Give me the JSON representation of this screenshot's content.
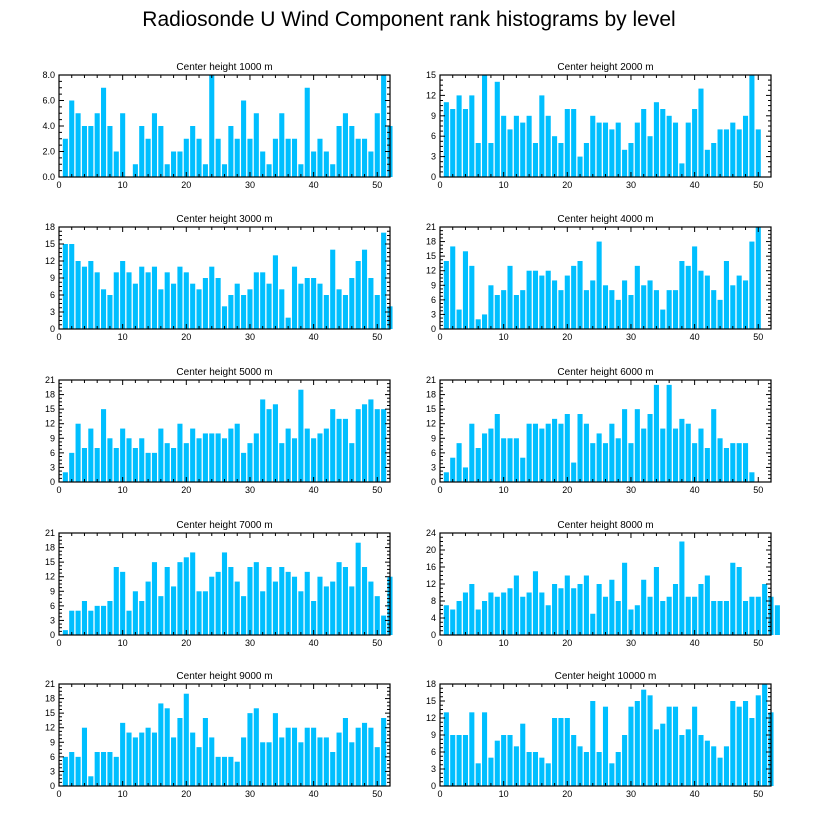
{
  "title": "Radiosonde U Wind Component rank histograms by level",
  "colors": {
    "bar": "#00bfff",
    "axis": "#000000",
    "background": "#ffffff"
  },
  "chart_data": [
    {
      "type": "bar",
      "title": "Center height 1000 m",
      "xlim": [
        0,
        52
      ],
      "ylim": [
        0,
        8
      ],
      "yticks": [
        "0.0",
        "2.0",
        "4.0",
        "6.0",
        "8.0"
      ],
      "xticks": [
        0,
        10,
        20,
        30,
        40,
        50
      ],
      "values": [
        3,
        6,
        5,
        4,
        4,
        5,
        7,
        4,
        2,
        5,
        0,
        1,
        4,
        3,
        5,
        4,
        1,
        2,
        2,
        3,
        4,
        3,
        1,
        8,
        3,
        1,
        4,
        3,
        6,
        3,
        5,
        2,
        1,
        3,
        5,
        3,
        3,
        1,
        7,
        2,
        3,
        2,
        1,
        4,
        5,
        4,
        3,
        3,
        2,
        5,
        8,
        4
      ]
    },
    {
      "type": "bar",
      "title": "Center height 2000 m",
      "xlim": [
        0,
        52
      ],
      "ylim": [
        0,
        15
      ],
      "yticks": [
        "0",
        "3",
        "6",
        "9",
        "12",
        "15"
      ],
      "xticks": [
        0,
        10,
        20,
        30,
        40,
        50
      ],
      "values": [
        11,
        10,
        12,
        10,
        12,
        5,
        15,
        5,
        14,
        9,
        7,
        9,
        8,
        9,
        5,
        12,
        9,
        6,
        5,
        10,
        10,
        3,
        5,
        9,
        8,
        8,
        7,
        8,
        4,
        5,
        8,
        10,
        6,
        11,
        10,
        9,
        8,
        2,
        8,
        10,
        13,
        4,
        5,
        7,
        7,
        8,
        7,
        9,
        15,
        7
      ]
    },
    {
      "type": "bar",
      "title": "Center height 3000 m",
      "xlim": [
        0,
        52
      ],
      "ylim": [
        0,
        18
      ],
      "yticks": [
        "0",
        "3",
        "6",
        "9",
        "12",
        "15",
        "18"
      ],
      "xticks": [
        0,
        10,
        20,
        30,
        40,
        50
      ],
      "values": [
        15,
        15,
        12,
        11,
        12,
        10,
        7,
        6,
        10,
        12,
        10,
        8,
        11,
        10,
        11,
        7,
        10,
        8,
        11,
        10,
        8,
        7,
        9,
        11,
        9,
        4,
        6,
        8,
        6,
        7,
        10,
        10,
        8,
        13,
        7,
        2,
        11,
        8,
        9,
        9,
        8,
        6,
        14,
        7,
        6,
        9,
        12,
        14,
        9,
        6,
        17,
        4
      ]
    },
    {
      "type": "bar",
      "title": "Center height 4000 m",
      "xlim": [
        0,
        52
      ],
      "ylim": [
        0,
        21
      ],
      "yticks": [
        "0",
        "3",
        "6",
        "9",
        "12",
        "15",
        "18",
        "21"
      ],
      "xticks": [
        0,
        10,
        20,
        30,
        40,
        50
      ],
      "values": [
        14,
        17,
        4,
        16,
        13,
        2,
        3,
        9,
        7,
        8,
        13,
        7,
        8,
        12,
        12,
        11,
        12,
        10,
        8,
        11,
        13,
        14,
        8,
        10,
        18,
        9,
        8,
        6,
        10,
        7,
        13,
        9,
        10,
        8,
        4,
        8,
        8,
        14,
        13,
        17,
        12,
        11,
        8,
        6,
        14,
        9,
        11,
        10,
        18,
        21
      ]
    },
    {
      "type": "bar",
      "title": "Center height 5000 m",
      "xlim": [
        0,
        52
      ],
      "ylim": [
        0,
        21
      ],
      "yticks": [
        "0",
        "3",
        "6",
        "9",
        "12",
        "15",
        "18",
        "21"
      ],
      "xticks": [
        0,
        10,
        20,
        30,
        40,
        50
      ],
      "values": [
        2,
        6,
        12,
        7,
        11,
        7,
        15,
        9,
        7,
        11,
        9,
        7,
        9,
        6,
        6,
        11,
        8,
        7,
        12,
        8,
        11,
        9,
        10,
        10,
        10,
        9,
        11,
        12,
        6,
        8,
        10,
        17,
        15,
        16,
        8,
        11,
        9,
        19,
        11,
        9,
        10,
        11,
        15,
        13,
        13,
        8,
        15,
        16,
        17,
        15,
        15
      ]
    },
    {
      "type": "bar",
      "title": "Center height 6000 m",
      "xlim": [
        0,
        52
      ],
      "ylim": [
        0,
        21
      ],
      "yticks": [
        "0",
        "3",
        "6",
        "9",
        "12",
        "15",
        "18",
        "21"
      ],
      "xticks": [
        0,
        10,
        20,
        30,
        40,
        50
      ],
      "values": [
        2,
        5,
        8,
        3,
        12,
        7,
        10,
        11,
        14,
        9,
        9,
        9,
        5,
        12,
        12,
        11,
        12,
        13,
        12,
        14,
        4,
        14,
        12,
        8,
        10,
        8,
        12,
        9,
        15,
        8,
        15,
        11,
        14,
        20,
        11,
        20,
        11,
        13,
        12,
        8,
        11,
        7,
        15,
        9,
        7,
        8,
        8,
        8,
        2
      ]
    },
    {
      "type": "bar",
      "title": "Center height 7000 m",
      "xlim": [
        0,
        52
      ],
      "ylim": [
        0,
        21
      ],
      "yticks": [
        "0",
        "3",
        "6",
        "9",
        "12",
        "15",
        "18",
        "21"
      ],
      "xticks": [
        0,
        10,
        20,
        30,
        40,
        50
      ],
      "values": [
        1,
        5,
        5,
        7,
        5,
        6,
        6,
        7,
        14,
        13,
        5,
        9,
        7,
        11,
        15,
        8,
        14,
        10,
        15,
        16,
        17,
        9,
        9,
        12,
        13,
        17,
        14,
        11,
        8,
        14,
        15,
        9,
        14,
        11,
        14,
        13,
        12,
        9,
        13,
        7,
        12,
        10,
        11,
        15,
        14,
        10,
        19,
        14,
        11,
        8,
        4,
        12
      ]
    },
    {
      "type": "bar",
      "title": "Center height 8000 m",
      "xlim": [
        0,
        52
      ],
      "ylim": [
        0,
        24
      ],
      "yticks": [
        "0",
        "4",
        "8",
        "12",
        "16",
        "20",
        "24"
      ],
      "xticks": [
        0,
        10,
        20,
        30,
        40,
        50
      ],
      "values": [
        7,
        6,
        8,
        10,
        12,
        6,
        8,
        10,
        9,
        10,
        11,
        14,
        9,
        10,
        15,
        10,
        7,
        12,
        11,
        14,
        11,
        12,
        14,
        5,
        12,
        9,
        13,
        8,
        17,
        6,
        7,
        13,
        9,
        16,
        8,
        9,
        12,
        22,
        9,
        9,
        12,
        14,
        8,
        8,
        8,
        17,
        16,
        8,
        9,
        9,
        12,
        9,
        7
      ]
    },
    {
      "type": "bar",
      "title": "Center height 9000 m",
      "xlim": [
        0,
        52
      ],
      "ylim": [
        0,
        21
      ],
      "yticks": [
        "0",
        "3",
        "6",
        "9",
        "12",
        "15",
        "18",
        "21"
      ],
      "xticks": [
        0,
        10,
        20,
        30,
        40,
        50
      ],
      "values": [
        6,
        7,
        6,
        12,
        2,
        7,
        7,
        7,
        6,
        13,
        11,
        10,
        11,
        12,
        11,
        17,
        16,
        10,
        14,
        19,
        11,
        8,
        14,
        10,
        6,
        6,
        6,
        5,
        10,
        15,
        16,
        9,
        9,
        15,
        10,
        12,
        12,
        9,
        12,
        12,
        10,
        10,
        7,
        11,
        14,
        9,
        12,
        13,
        12,
        8,
        14
      ]
    },
    {
      "type": "bar",
      "title": "Center height 10000 m",
      "xlim": [
        0,
        52
      ],
      "ylim": [
        0,
        18
      ],
      "yticks": [
        "0",
        "3",
        "6",
        "9",
        "12",
        "15",
        "18"
      ],
      "xticks": [
        0,
        10,
        20,
        30,
        40,
        50
      ],
      "values": [
        13,
        9,
        9,
        9,
        13,
        4,
        13,
        5,
        8,
        9,
        9,
        7,
        11,
        6,
        6,
        5,
        4,
        12,
        12,
        12,
        9,
        7,
        6,
        15,
        6,
        14,
        4,
        6,
        9,
        14,
        15,
        17,
        16,
        10,
        11,
        14,
        14,
        9,
        10,
        14,
        9,
        8,
        7,
        5,
        7,
        15,
        14,
        15,
        12,
        16,
        18,
        13
      ]
    }
  ]
}
